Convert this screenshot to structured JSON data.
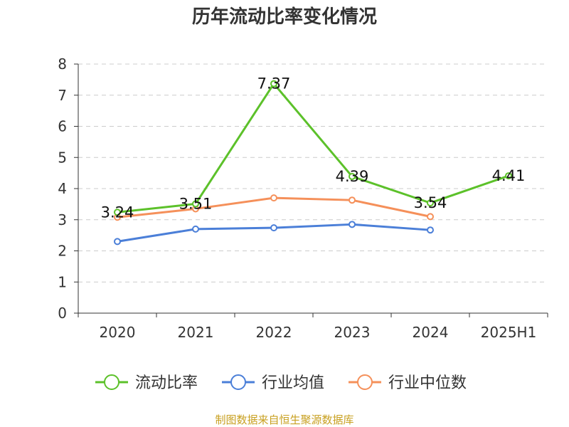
{
  "chart_data": {
    "type": "line",
    "title": "历年流动比率变化情况",
    "categories": [
      "2020",
      "2021",
      "2022",
      "2023",
      "2024",
      "2025H1"
    ],
    "ylim": [
      0,
      8
    ],
    "yticks": [
      "0",
      "1",
      "2",
      "3",
      "4",
      "5",
      "6",
      "7",
      "8"
    ],
    "grid": true,
    "legend_position": "bottom",
    "series": [
      {
        "name": "流动比率",
        "color": "#5cc12a",
        "values": [
          3.24,
          3.51,
          7.37,
          4.39,
          3.54,
          4.41
        ],
        "labels": [
          "3.24",
          "3.51",
          "7.37",
          "4.39",
          "3.54",
          "4.41"
        ]
      },
      {
        "name": "行业均值",
        "color": "#4b7fd8",
        "values": [
          2.3,
          2.7,
          2.74,
          2.85,
          2.67,
          null
        ]
      },
      {
        "name": "行业中位数",
        "color": "#f5905a",
        "values": [
          3.08,
          3.35,
          3.7,
          3.63,
          3.1,
          null
        ]
      }
    ],
    "source": "制图数据来自恒生聚源数据库"
  }
}
